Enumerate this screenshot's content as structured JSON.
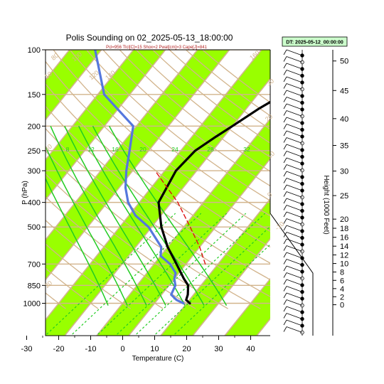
{
  "chart_data": {
    "type": "line",
    "title": "Polis Sounding on 02_2025-05-13_18:00:00",
    "subtitle": "Pcl=956 Tlcl[C]=15 Shox=2 Pwat[cm]=3 Cape[J]=841",
    "badge": "DT: 2025-05-12_00:00:00",
    "xlabel": "Temperature (C)",
    "ylabel": "P (hPa)",
    "right_axis_label": "Height (1000 Feet)",
    "x_ticks": [
      "-30",
      "-20",
      "-10",
      "0",
      "10",
      "20",
      "30",
      "40"
    ],
    "x_tick_values": [
      -30,
      -20,
      -10,
      0,
      10,
      20,
      30,
      40
    ],
    "xlim": [
      -33.2,
      44.4
    ],
    "pressure_ticks": [
      "100",
      "150",
      "200",
      "250",
      "300",
      "400",
      "500",
      "700",
      "850",
      "1000"
    ],
    "pressure_tick_values": [
      100,
      150,
      200,
      250,
      300,
      400,
      500,
      700,
      850,
      1000
    ],
    "ylim_hpa": [
      100,
      1020
    ],
    "height_ticks": [
      "0",
      "2",
      "4",
      "6",
      "8",
      "10",
      "12",
      "14",
      "16",
      "18",
      "20",
      "25",
      "30",
      "35",
      "40",
      "45",
      "50"
    ],
    "height_tick_values": [
      0,
      2,
      4,
      6,
      8,
      10,
      12,
      14,
      16,
      18,
      20,
      25,
      30,
      35,
      40,
      45,
      50
    ],
    "dry_adiabat_labels": [
      "-20",
      "-10",
      "0",
      "10",
      "20",
      "30",
      "40",
      "60",
      "80",
      "100",
      "120",
      "140",
      "160"
    ],
    "mixing_ratio_labels": [
      "8",
      "12",
      "16",
      "20",
      "24",
      "28",
      "32"
    ],
    "series": [
      {
        "name": "Temperature",
        "color": "#000000",
        "points": [
          [
            1000,
            21.0
          ],
          [
            970,
            19.0
          ],
          [
            925,
            18.2
          ],
          [
            850,
            16.0
          ],
          [
            800,
            13.0
          ],
          [
            700,
            7.0
          ],
          [
            600,
            0.0
          ],
          [
            500,
            -7.0
          ],
          [
            400,
            -14.0
          ],
          [
            300,
            -16.5
          ],
          [
            250,
            -15.5
          ],
          [
            220,
            -12.5
          ],
          [
            200,
            -10.0
          ],
          [
            170,
            -6.0
          ],
          [
            150,
            -2.0
          ],
          [
            125,
            1.0
          ],
          [
            100,
            3.5
          ]
        ]
      },
      {
        "name": "Dew point",
        "color": "#5577dd",
        "points": [
          [
            1000,
            19.0
          ],
          [
            970,
            16.0
          ],
          [
            925,
            13.0
          ],
          [
            850,
            12.0
          ],
          [
            800,
            10.0
          ],
          [
            760,
            9.0
          ],
          [
            700,
            5.0
          ],
          [
            650,
            0.0
          ],
          [
            600,
            -2.0
          ],
          [
            500,
            -11.0
          ],
          [
            450,
            -18.0
          ],
          [
            400,
            -23.5
          ],
          [
            350,
            -28.0
          ],
          [
            300,
            -32.0
          ],
          [
            250,
            -36.0
          ],
          [
            200,
            -41.0
          ],
          [
            150,
            -58.0
          ],
          [
            100,
            -72.0
          ]
        ]
      },
      {
        "name": "Parcel",
        "color": "#dd1111",
        "dashed": true,
        "points": [
          [
            700,
            16.0
          ],
          [
            600,
            10.0
          ],
          [
            500,
            2.0
          ],
          [
            400,
            -8.0
          ],
          [
            300,
            -23.0
          ]
        ]
      }
    ]
  }
}
